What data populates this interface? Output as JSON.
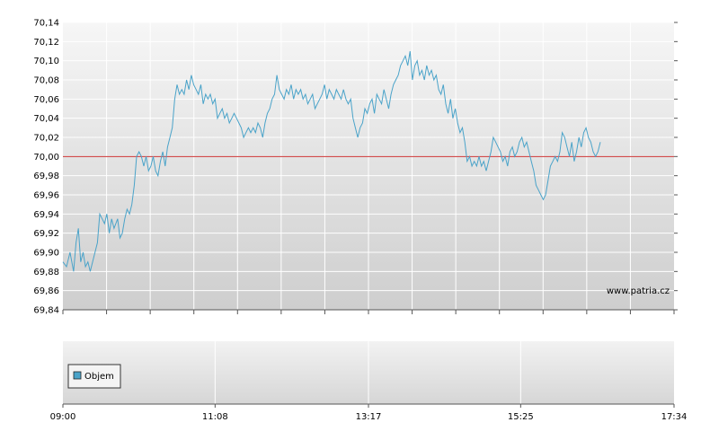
{
  "chart_data": {
    "type": "line",
    "title": "",
    "xlabel": "",
    "ylabel": "",
    "ylim": [
      69.84,
      70.14
    ],
    "y_ticks": [
      "70,14",
      "70,12",
      "70,10",
      "70,08",
      "70,06",
      "70,04",
      "70,02",
      "70,00",
      "69,98",
      "69,96",
      "69,94",
      "69,92",
      "69,90",
      "69,88",
      "69,86",
      "69,84"
    ],
    "y_tick_values": [
      70.14,
      70.12,
      70.1,
      70.08,
      70.06,
      70.04,
      70.02,
      70.0,
      69.98,
      69.96,
      69.94,
      69.92,
      69.9,
      69.88,
      69.86,
      69.84
    ],
    "x_range_minutes": [
      540,
      1054
    ],
    "x_ticks": [
      {
        "label": "09:00",
        "minute": 540
      },
      {
        "label": "11:08",
        "minute": 668
      },
      {
        "label": "13:17",
        "minute": 797
      },
      {
        "label": "15:25",
        "minute": 925
      },
      {
        "label": "17:34",
        "minute": 1054
      }
    ],
    "reference_line": {
      "value": 70.0,
      "color": "#cc3333"
    },
    "series": [
      {
        "color": "#4aa3c9",
        "points": [
          [
            540,
            69.89
          ],
          [
            543,
            69.885
          ],
          [
            546,
            69.9
          ],
          [
            549,
            69.88
          ],
          [
            551,
            69.91
          ],
          [
            553,
            69.925
          ],
          [
            555,
            69.89
          ],
          [
            557,
            69.9
          ],
          [
            559,
            69.885
          ],
          [
            561,
            69.89
          ],
          [
            563,
            69.88
          ],
          [
            566,
            69.895
          ],
          [
            569,
            69.91
          ],
          [
            571,
            69.94
          ],
          [
            573,
            69.935
          ],
          [
            575,
            69.93
          ],
          [
            577,
            69.94
          ],
          [
            579,
            69.92
          ],
          [
            581,
            69.935
          ],
          [
            583,
            69.925
          ],
          [
            586,
            69.935
          ],
          [
            588,
            69.915
          ],
          [
            590,
            69.92
          ],
          [
            592,
            69.935
          ],
          [
            594,
            69.945
          ],
          [
            596,
            69.94
          ],
          [
            598,
            69.95
          ],
          [
            600,
            69.97
          ],
          [
            602,
            70.0
          ],
          [
            604,
            70.005
          ],
          [
            606,
            70.0
          ],
          [
            608,
            69.99
          ],
          [
            610,
            70.0
          ],
          [
            612,
            69.985
          ],
          [
            614,
            69.99
          ],
          [
            616,
            70.0
          ],
          [
            618,
            69.985
          ],
          [
            620,
            69.98
          ],
          [
            622,
            69.995
          ],
          [
            624,
            70.005
          ],
          [
            626,
            69.99
          ],
          [
            628,
            70.01
          ],
          [
            630,
            70.02
          ],
          [
            632,
            70.03
          ],
          [
            634,
            70.06
          ],
          [
            636,
            70.075
          ],
          [
            638,
            70.065
          ],
          [
            640,
            70.07
          ],
          [
            642,
            70.065
          ],
          [
            644,
            70.08
          ],
          [
            646,
            70.07
          ],
          [
            648,
            70.085
          ],
          [
            650,
            70.075
          ],
          [
            652,
            70.07
          ],
          [
            654,
            70.065
          ],
          [
            656,
            70.075
          ],
          [
            658,
            70.055
          ],
          [
            660,
            70.065
          ],
          [
            662,
            70.06
          ],
          [
            664,
            70.065
          ],
          [
            666,
            70.055
          ],
          [
            668,
            70.06
          ],
          [
            670,
            70.04
          ],
          [
            672,
            70.045
          ],
          [
            674,
            70.05
          ],
          [
            676,
            70.04
          ],
          [
            678,
            70.045
          ],
          [
            680,
            70.035
          ],
          [
            682,
            70.04
          ],
          [
            684,
            70.045
          ],
          [
            686,
            70.04
          ],
          [
            688,
            70.035
          ],
          [
            690,
            70.03
          ],
          [
            692,
            70.02
          ],
          [
            694,
            70.025
          ],
          [
            696,
            70.03
          ],
          [
            698,
            70.025
          ],
          [
            700,
            70.03
          ],
          [
            702,
            70.025
          ],
          [
            704,
            70.035
          ],
          [
            706,
            70.03
          ],
          [
            708,
            70.02
          ],
          [
            710,
            70.035
          ],
          [
            712,
            70.045
          ],
          [
            714,
            70.05
          ],
          [
            716,
            70.06
          ],
          [
            718,
            70.065
          ],
          [
            720,
            70.085
          ],
          [
            722,
            70.07
          ],
          [
            724,
            70.065
          ],
          [
            726,
            70.06
          ],
          [
            728,
            70.07
          ],
          [
            730,
            70.065
          ],
          [
            732,
            70.075
          ],
          [
            734,
            70.06
          ],
          [
            736,
            70.07
          ],
          [
            738,
            70.065
          ],
          [
            740,
            70.07
          ],
          [
            742,
            70.06
          ],
          [
            744,
            70.065
          ],
          [
            746,
            70.055
          ],
          [
            748,
            70.06
          ],
          [
            750,
            70.065
          ],
          [
            752,
            70.05
          ],
          [
            754,
            70.055
          ],
          [
            756,
            70.06
          ],
          [
            758,
            70.065
          ],
          [
            760,
            70.075
          ],
          [
            762,
            70.06
          ],
          [
            764,
            70.07
          ],
          [
            766,
            70.065
          ],
          [
            768,
            70.06
          ],
          [
            770,
            70.07
          ],
          [
            772,
            70.065
          ],
          [
            774,
            70.06
          ],
          [
            776,
            70.07
          ],
          [
            778,
            70.06
          ],
          [
            780,
            70.055
          ],
          [
            782,
            70.06
          ],
          [
            784,
            70.04
          ],
          [
            786,
            70.03
          ],
          [
            788,
            70.02
          ],
          [
            790,
            70.03
          ],
          [
            792,
            70.035
          ],
          [
            794,
            70.05
          ],
          [
            796,
            70.045
          ],
          [
            798,
            70.055
          ],
          [
            800,
            70.06
          ],
          [
            802,
            70.045
          ],
          [
            804,
            70.065
          ],
          [
            806,
            70.06
          ],
          [
            808,
            70.055
          ],
          [
            810,
            70.07
          ],
          [
            812,
            70.06
          ],
          [
            814,
            70.05
          ],
          [
            816,
            70.065
          ],
          [
            818,
            70.075
          ],
          [
            820,
            70.08
          ],
          [
            822,
            70.085
          ],
          [
            824,
            70.095
          ],
          [
            826,
            70.1
          ],
          [
            828,
            70.105
          ],
          [
            830,
            70.095
          ],
          [
            832,
            70.11
          ],
          [
            834,
            70.08
          ],
          [
            836,
            70.095
          ],
          [
            838,
            70.1
          ],
          [
            840,
            70.085
          ],
          [
            842,
            70.09
          ],
          [
            844,
            70.08
          ],
          [
            846,
            70.095
          ],
          [
            848,
            70.085
          ],
          [
            850,
            70.09
          ],
          [
            852,
            70.08
          ],
          [
            854,
            70.085
          ],
          [
            856,
            70.07
          ],
          [
            858,
            70.065
          ],
          [
            860,
            70.075
          ],
          [
            862,
            70.055
          ],
          [
            864,
            70.045
          ],
          [
            866,
            70.06
          ],
          [
            868,
            70.04
          ],
          [
            870,
            70.05
          ],
          [
            872,
            70.035
          ],
          [
            874,
            70.025
          ],
          [
            876,
            70.03
          ],
          [
            878,
            70.015
          ],
          [
            880,
            69.995
          ],
          [
            882,
            70.0
          ],
          [
            884,
            69.99
          ],
          [
            886,
            69.995
          ],
          [
            888,
            69.99
          ],
          [
            890,
            70.0
          ],
          [
            892,
            69.99
          ],
          [
            894,
            69.995
          ],
          [
            896,
            69.985
          ],
          [
            898,
            69.995
          ],
          [
            900,
            70.005
          ],
          [
            902,
            70.02
          ],
          [
            904,
            70.015
          ],
          [
            906,
            70.01
          ],
          [
            908,
            70.005
          ],
          [
            910,
            69.995
          ],
          [
            912,
            70.0
          ],
          [
            914,
            69.99
          ],
          [
            916,
            70.005
          ],
          [
            918,
            70.01
          ],
          [
            920,
            70.0
          ],
          [
            922,
            70.005
          ],
          [
            924,
            70.015
          ],
          [
            926,
            70.02
          ],
          [
            928,
            70.01
          ],
          [
            930,
            70.015
          ],
          [
            932,
            70.005
          ],
          [
            934,
            69.995
          ],
          [
            936,
            69.985
          ],
          [
            938,
            69.97
          ],
          [
            940,
            69.965
          ],
          [
            942,
            69.96
          ],
          [
            944,
            69.955
          ],
          [
            946,
            69.96
          ],
          [
            948,
            69.975
          ],
          [
            950,
            69.99
          ],
          [
            952,
            69.995
          ],
          [
            954,
            70.0
          ],
          [
            956,
            69.995
          ],
          [
            958,
            70.005
          ],
          [
            960,
            70.025
          ],
          [
            962,
            70.02
          ],
          [
            964,
            70.01
          ],
          [
            966,
            70.0
          ],
          [
            968,
            70.015
          ],
          [
            970,
            69.995
          ],
          [
            972,
            70.005
          ],
          [
            974,
            70.02
          ],
          [
            976,
            70.01
          ],
          [
            978,
            70.025
          ],
          [
            980,
            70.03
          ],
          [
            982,
            70.02
          ],
          [
            984,
            70.015
          ],
          [
            986,
            70.005
          ],
          [
            988,
            70.0
          ],
          [
            990,
            70.005
          ],
          [
            992,
            70.015
          ]
        ]
      }
    ]
  },
  "watermark": "www.patria.cz",
  "legend": {
    "label": "Objem",
    "swatch_color": "#4aa3c9"
  }
}
